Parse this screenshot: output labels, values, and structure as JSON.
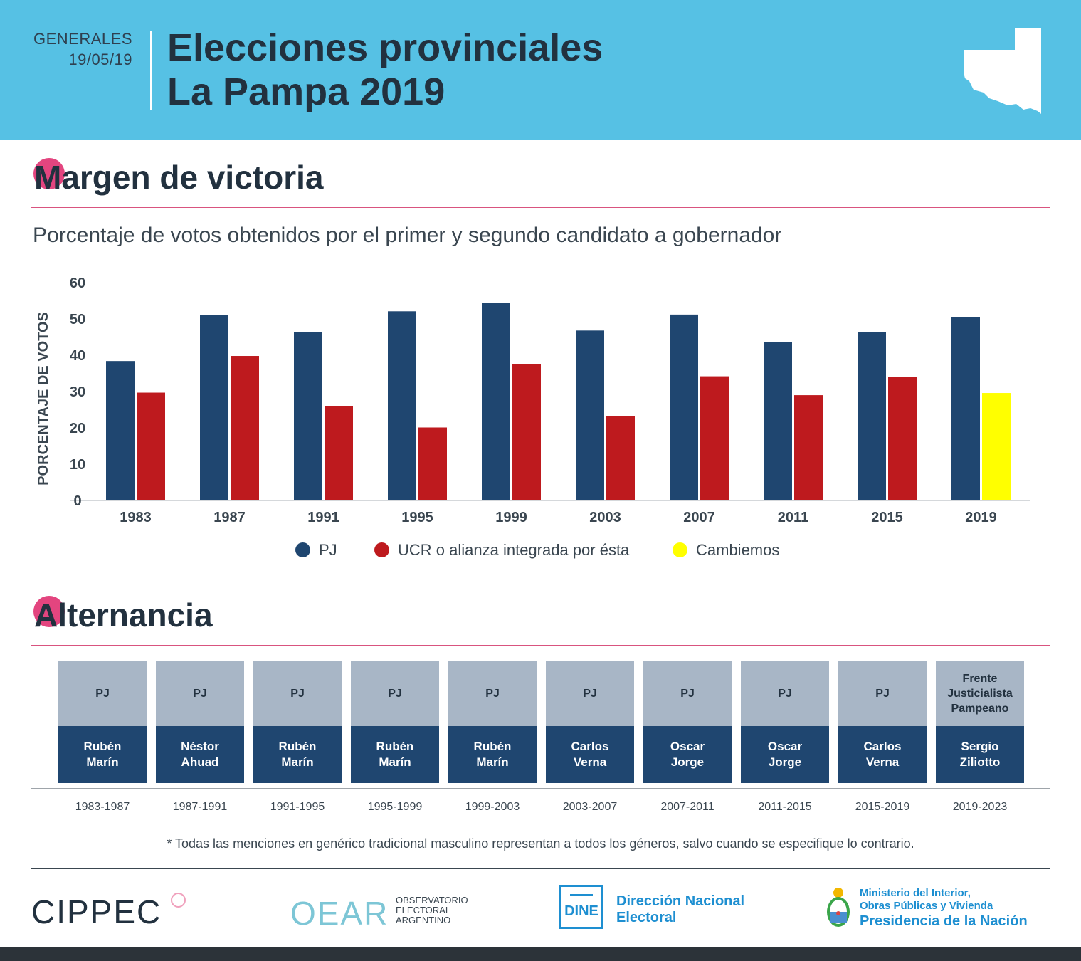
{
  "header": {
    "kicker": "GENERALES",
    "date": "19/05/19",
    "title_line1": "Elecciones provinciales",
    "title_line2": "La Pampa 2019"
  },
  "section1": {
    "title": "Margen de victoria",
    "subtitle": "Porcentaje de votos obtenidos por el primer y segundo candidato a gobernador"
  },
  "chart_data": {
    "type": "bar",
    "title": "Porcentaje de votos obtenidos por el primer y segundo candidato a gobernador",
    "xlabel": "",
    "ylabel": "PORCENTAJE DE VOTOS",
    "ylim": [
      0,
      60
    ],
    "yticks": [
      0,
      10,
      20,
      30,
      40,
      50,
      60
    ],
    "categories": [
      "1983",
      "1987",
      "1991",
      "1995",
      "1999",
      "2003",
      "2007",
      "2011",
      "2015",
      "2019"
    ],
    "series": [
      {
        "name": "PJ",
        "color": "#1f4670",
        "values": [
          38.4,
          51.1,
          46.3,
          52.1,
          54.5,
          46.8,
          51.2,
          43.7,
          46.4,
          50.5
        ]
      },
      {
        "name": "UCR o alianza integrada por ésta",
        "color": "#be1a1e",
        "values": [
          29.7,
          39.8,
          26.0,
          20.1,
          37.6,
          23.2,
          34.2,
          29.0,
          34.0,
          null
        ]
      },
      {
        "name": "Cambiemos",
        "color": "#ffff00",
        "values": [
          null,
          null,
          null,
          null,
          null,
          null,
          null,
          null,
          null,
          29.6
        ]
      }
    ],
    "legend_position": "bottom"
  },
  "section2": {
    "title": "Alternancia",
    "periods": [
      {
        "party": "PJ",
        "governor": "Rubén Marín",
        "period": "1983-1987"
      },
      {
        "party": "PJ",
        "governor": "Néstor Ahuad",
        "period": "1987-1991"
      },
      {
        "party": "PJ",
        "governor": "Rubén Marín",
        "period": "1991-1995"
      },
      {
        "party": "PJ",
        "governor": "Rubén Marín",
        "period": "1995-1999"
      },
      {
        "party": "PJ",
        "governor": "Rubén Marín",
        "period": "1999-2003"
      },
      {
        "party": "PJ",
        "governor": "Carlos Verna",
        "period": "2003-2007"
      },
      {
        "party": "PJ",
        "governor": "Oscar Jorge",
        "period": "2007-2011"
      },
      {
        "party": "PJ",
        "governor": "Oscar Jorge",
        "period": "2011-2015"
      },
      {
        "party": "PJ",
        "governor": "Carlos Verna",
        "period": "2015-2019"
      },
      {
        "party": "Frente Justicialista Pampeano",
        "governor": "Sergio Ziliotto",
        "period": "2019-2023"
      }
    ]
  },
  "note": "* Todas las menciones en genérico tradicional masculino representan a todos los géneros, salvo cuando se especifique lo contrario.",
  "footer": {
    "cippec": "CIPPEC",
    "oear_short": "OEAR",
    "oear_l1": "OBSERVATORIO",
    "oear_l2": "ELECTORAL",
    "oear_l3": "ARGENTINO",
    "dine_badge": "DINE",
    "dine_l1": "Dirección Nacional",
    "dine_l2": "Electoral",
    "min_l1": "Ministerio del Interior,",
    "min_l2": "Obras Públicas y Vivienda",
    "min_l3": "Presidencia de la Nación"
  },
  "colors": {
    "header_bg": "#56c1e4",
    "accent": "#e3457f",
    "pj": "#1f4670",
    "ucr": "#be1a1e",
    "cambiemos": "#ffff00"
  }
}
